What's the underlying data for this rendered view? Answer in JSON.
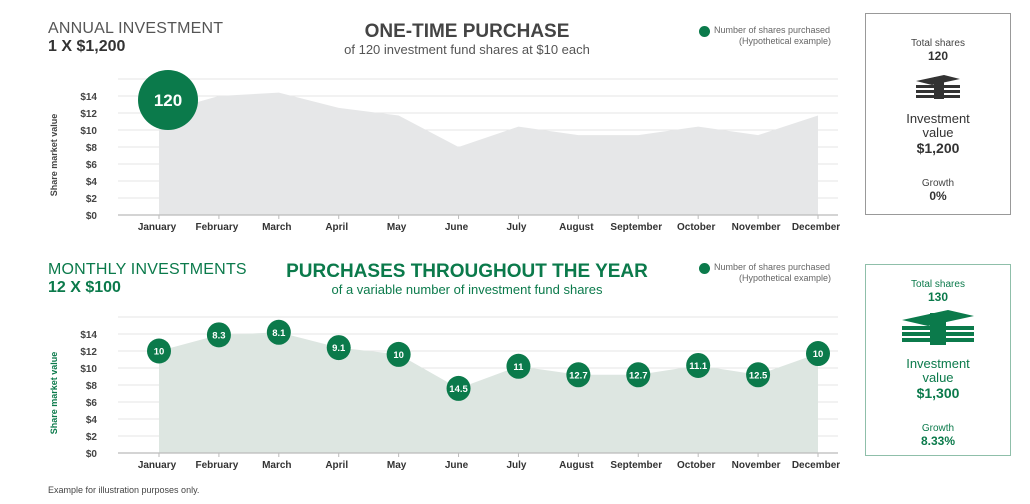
{
  "colors": {
    "green": "#0b7a4b",
    "top_area": "#e6e7e8",
    "bottom_area": "#dde6e1",
    "grid": "#e4e4e4"
  },
  "legend": {
    "label": "Number of shares purchased",
    "note": "(Hypothetical example)"
  },
  "top": {
    "section_title": "ANNUAL INVESTMENT",
    "section_sub": "1 X $1,200",
    "title": "ONE-TIME PURCHASE",
    "subtitle": "of 120 investment fund shares at $10 each",
    "summary": {
      "total_label": "Total shares",
      "total": "120",
      "icon": "money-stack-icon",
      "value_label_1": "Investment",
      "value_label_2": "value",
      "value": "$1,200",
      "growth_label": "Growth",
      "growth": "0%"
    }
  },
  "bottom": {
    "section_title": "MONTHLY INVESTMENTS",
    "section_sub": "12 X $100",
    "title": "PURCHASES THROUGHOUT THE YEAR",
    "subtitle": "of a variable number of investment fund shares",
    "summary": {
      "total_label": "Total shares",
      "total": "130",
      "icon": "money-stack-icon",
      "value_label_1": "Investment",
      "value_label_2": "value",
      "value": "$1,300",
      "growth_label": "Growth",
      "growth": "8.33%"
    }
  },
  "footer": "Example for illustration purposes only.",
  "chart_data": [
    {
      "type": "area",
      "title": "ONE-TIME PURCHASE",
      "ylabel": "Share market value",
      "ylim": [
        0,
        16
      ],
      "yticks": [
        "$0",
        "$2",
        "$4",
        "$6",
        "$8",
        "$10",
        "$12",
        "$14"
      ],
      "categories": [
        "January",
        "February",
        "March",
        "April",
        "May",
        "June",
        "July",
        "August",
        "September",
        "October",
        "November",
        "December"
      ],
      "values": [
        12,
        14,
        14.4,
        12.6,
        11.7,
        8,
        10.4,
        9.4,
        9.4,
        10.4,
        9.4,
        11.7
      ],
      "markers": [
        {
          "month": "January",
          "shares": "120"
        }
      ]
    },
    {
      "type": "area",
      "title": "PURCHASES THROUGHOUT THE YEAR",
      "ylabel": "Share market value",
      "ylim": [
        0,
        16
      ],
      "yticks": [
        "$0",
        "$2",
        "$4",
        "$6",
        "$8",
        "$10",
        "$12",
        "$14"
      ],
      "categories": [
        "January",
        "February",
        "March",
        "April",
        "May",
        "June",
        "July",
        "August",
        "September",
        "October",
        "November",
        "December"
      ],
      "values": [
        12,
        13.9,
        14.2,
        12.4,
        11.6,
        7.6,
        10.2,
        9.2,
        9.2,
        10.3,
        9.2,
        11.7
      ],
      "markers": [
        {
          "month": "January",
          "shares": "10"
        },
        {
          "month": "February",
          "shares": "8.3"
        },
        {
          "month": "March",
          "shares": "8.1"
        },
        {
          "month": "April",
          "shares": "9.1"
        },
        {
          "month": "May",
          "shares": "10"
        },
        {
          "month": "June",
          "shares": "14.5"
        },
        {
          "month": "July",
          "shares": "11"
        },
        {
          "month": "August",
          "shares": "12.7"
        },
        {
          "month": "September",
          "shares": "12.7"
        },
        {
          "month": "October",
          "shares": "11.1"
        },
        {
          "month": "November",
          "shares": "12.5"
        },
        {
          "month": "December",
          "shares": "10"
        }
      ]
    }
  ]
}
